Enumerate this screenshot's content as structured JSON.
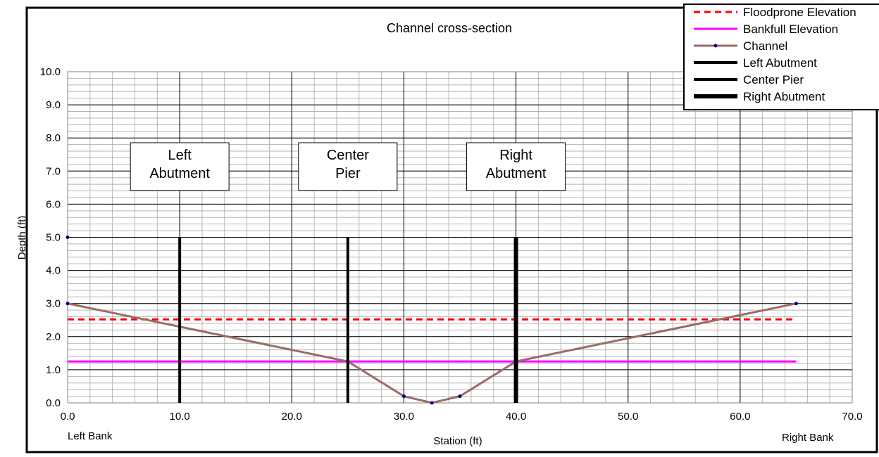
{
  "chart_data": {
    "type": "line",
    "title": "Channel cross-section",
    "xlabel": "Station (ft)",
    "ylabel": "Depth (ft)",
    "xlim": [
      0,
      70
    ],
    "ylim": [
      0,
      10
    ],
    "x_ticks": [
      "0.0",
      "10.0",
      "20.0",
      "30.0",
      "40.0",
      "50.0",
      "60.0",
      "70.0"
    ],
    "y_ticks": [
      "0.0",
      "1.0",
      "2.0",
      "3.0",
      "4.0",
      "5.0",
      "6.0",
      "7.0",
      "8.0",
      "9.0",
      "10.0"
    ],
    "grid": true,
    "legend_position": "top-right",
    "bank_labels": {
      "left": "Left Bank",
      "right": "Right Bank"
    },
    "annotations": [
      {
        "lines": [
          "Left",
          "Abutment"
        ],
        "x": 10
      },
      {
        "lines": [
          "Center",
          "Pier"
        ],
        "x": 25
      },
      {
        "lines": [
          "Right",
          "Abutment"
        ],
        "x": 40
      }
    ],
    "series": [
      {
        "name": "Floodprone Elevation",
        "color": "#ff0000",
        "style": "dashed",
        "points": [
          [
            0,
            2.52
          ],
          [
            65,
            2.52
          ]
        ]
      },
      {
        "name": "Bankfull Elevation",
        "color": "#ff00ff",
        "style": "solid",
        "points": [
          [
            0,
            1.25
          ],
          [
            65,
            1.25
          ]
        ]
      },
      {
        "name": "Channel",
        "color": "#9a6b68",
        "style": "solid",
        "markers": true,
        "points": [
          [
            0,
            3.0
          ],
          [
            25,
            1.25
          ],
          [
            30,
            0.2
          ],
          [
            32.5,
            0.0
          ],
          [
            35,
            0.2
          ],
          [
            40,
            1.25
          ],
          [
            65,
            3.0
          ]
        ]
      },
      {
        "name": "Left Abutment",
        "color": "#000000",
        "style": "solid",
        "points": [
          [
            10,
            0
          ],
          [
            10,
            5
          ]
        ]
      },
      {
        "name": "Center Pier",
        "color": "#000000",
        "style": "solid",
        "points": [
          [
            25,
            0
          ],
          [
            25,
            5
          ]
        ]
      },
      {
        "name": "Right Abutment",
        "color": "#000000",
        "style": "solid",
        "points": [
          [
            40,
            0
          ],
          [
            40,
            5
          ]
        ]
      }
    ],
    "extra_points": [
      [
        0,
        5.0
      ]
    ]
  }
}
